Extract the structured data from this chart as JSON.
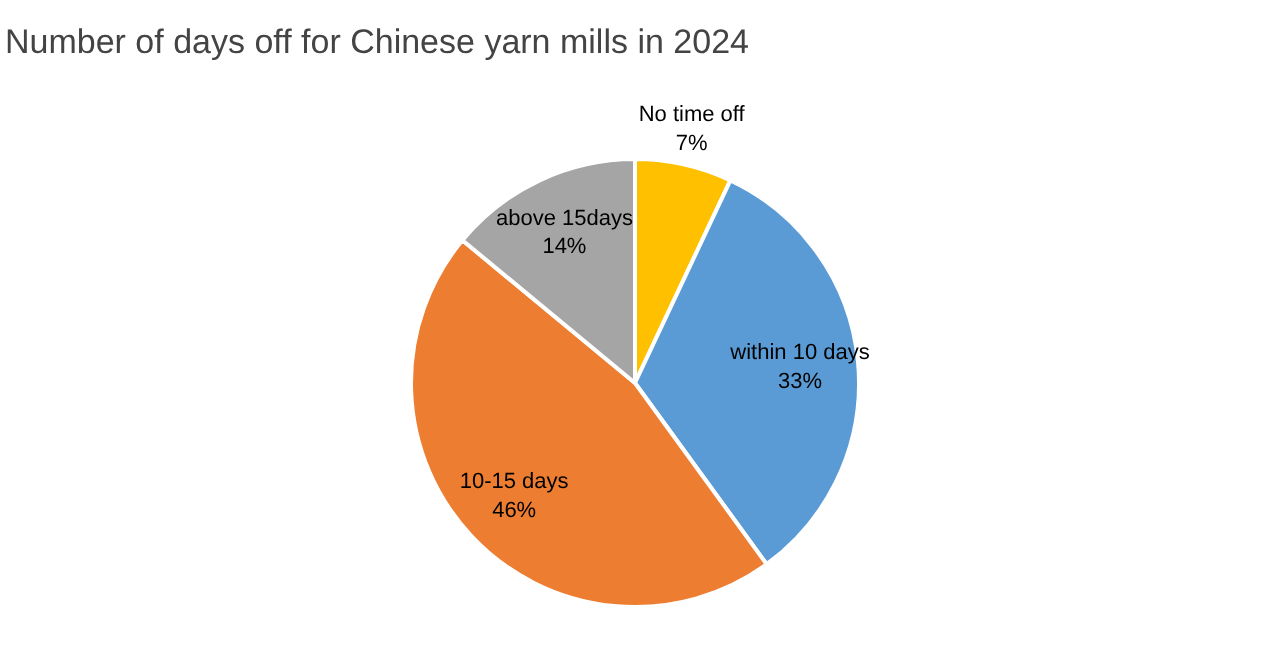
{
  "chart_data": {
    "type": "pie",
    "title": "Number of days off for Chinese yarn mills in 2024",
    "categories": [
      "No time off",
      "within 10 days",
      "10-15 days",
      "above 15days"
    ],
    "values": [
      7,
      33,
      46,
      14
    ],
    "value_labels": [
      "7%",
      "33%",
      "46%",
      "14%"
    ],
    "colors": [
      "#ffc000",
      "#5b9bd5",
      "#ed7d31",
      "#a5a5a5"
    ],
    "legend": false
  }
}
